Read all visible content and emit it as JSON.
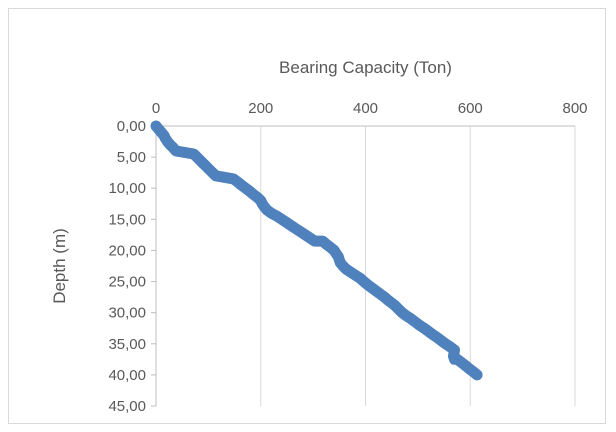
{
  "chart_data": {
    "type": "line",
    "xlabel": "Bearing Capacity (Ton)",
    "ylabel": "Depth (m)",
    "x_axis_position": "top",
    "y_axis_reversed": true,
    "xlim": [
      0,
      800
    ],
    "ylim": [
      0,
      45
    ],
    "x_ticks": [
      "0",
      "200",
      "400",
      "600",
      "800"
    ],
    "y_ticks": [
      "0,00",
      "5,00",
      "10,00",
      "15,00",
      "20,00",
      "25,00",
      "30,00",
      "35,00",
      "40,00",
      "45,00"
    ],
    "grid": "vertical",
    "series_color": "#4f81bd",
    "series": [
      {
        "points": [
          [
            0,
            0.0
          ],
          [
            5,
            0.5
          ],
          [
            10,
            1.0
          ],
          [
            15,
            1.5
          ],
          [
            18,
            2.0
          ],
          [
            22,
            2.5
          ],
          [
            27,
            3.0
          ],
          [
            33,
            3.5
          ],
          [
            38,
            4.0
          ],
          [
            72,
            4.5
          ],
          [
            78,
            5.0
          ],
          [
            84,
            5.5
          ],
          [
            90,
            6.0
          ],
          [
            96,
            6.5
          ],
          [
            102,
            7.0
          ],
          [
            108,
            7.5
          ],
          [
            114,
            8.0
          ],
          [
            148,
            8.5
          ],
          [
            156,
            9.0
          ],
          [
            163,
            9.5
          ],
          [
            171,
            10.0
          ],
          [
            179,
            10.5
          ],
          [
            186,
            11.0
          ],
          [
            194,
            11.5
          ],
          [
            200,
            12.0
          ],
          [
            203,
            12.5
          ],
          [
            207,
            13.0
          ],
          [
            212,
            13.5
          ],
          [
            220,
            14.0
          ],
          [
            231,
            14.5
          ],
          [
            240,
            15.0
          ],
          [
            249,
            15.5
          ],
          [
            258,
            16.0
          ],
          [
            267,
            16.5
          ],
          [
            276,
            17.0
          ],
          [
            285,
            17.5
          ],
          [
            294,
            18.0
          ],
          [
            303,
            18.5
          ],
          [
            318,
            18.5
          ],
          [
            325,
            19.0
          ],
          [
            333,
            19.5
          ],
          [
            340,
            20.0
          ],
          [
            344,
            20.5
          ],
          [
            348,
            21.0
          ],
          [
            350,
            21.5
          ],
          [
            352,
            22.0
          ],
          [
            357,
            22.5
          ],
          [
            363,
            23.0
          ],
          [
            372,
            23.5
          ],
          [
            381,
            24.0
          ],
          [
            390,
            24.5
          ],
          [
            397,
            25.0
          ],
          [
            404,
            25.5
          ],
          [
            412,
            26.0
          ],
          [
            420,
            26.5
          ],
          [
            428,
            27.0
          ],
          [
            436,
            27.5
          ],
          [
            443,
            28.0
          ],
          [
            451,
            28.5
          ],
          [
            458,
            29.0
          ],
          [
            464,
            29.5
          ],
          [
            470,
            30.0
          ],
          [
            478,
            30.5
          ],
          [
            487,
            31.0
          ],
          [
            495,
            31.5
          ],
          [
            503,
            32.0
          ],
          [
            512,
            32.5
          ],
          [
            520,
            33.0
          ],
          [
            528,
            33.5
          ],
          [
            537,
            34.0
          ],
          [
            545,
            34.5
          ],
          [
            553,
            35.0
          ],
          [
            562,
            35.5
          ],
          [
            570,
            36.0
          ],
          [
            569,
            36.5
          ],
          [
            568,
            37.0
          ],
          [
            570,
            37.5
          ],
          [
            575,
            37.5
          ],
          [
            583,
            38.0
          ],
          [
            591,
            38.5
          ],
          [
            598,
            39.0
          ],
          [
            606,
            39.5
          ],
          [
            613,
            40.0
          ]
        ]
      }
    ]
  }
}
